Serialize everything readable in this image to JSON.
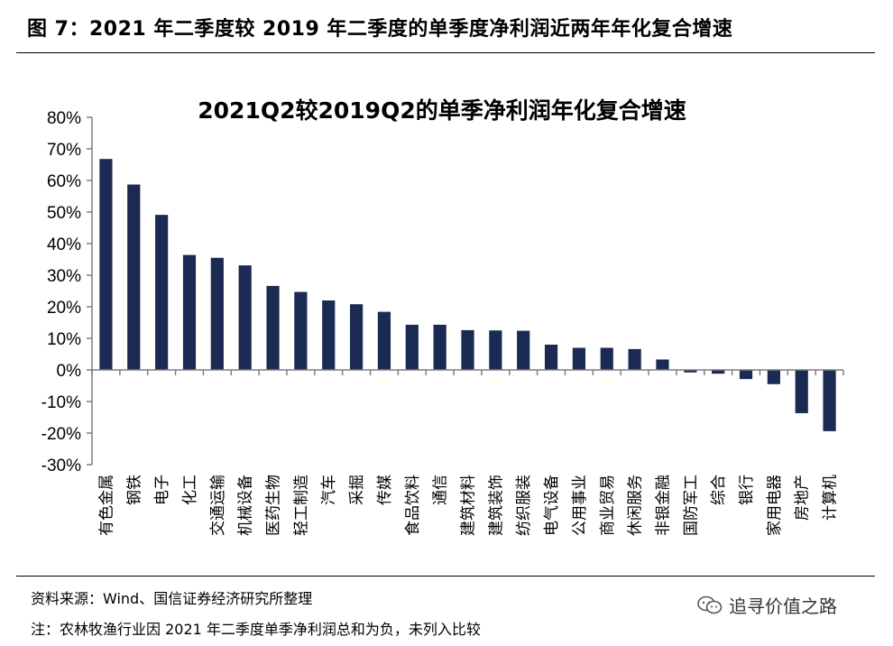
{
  "figure": {
    "title": "图 7：2021 年二季度较 2019 年二季度的单季度净利润近两年年化复合增速",
    "source": "资料来源：Wind、国信证券经济研究所整理",
    "note": "注：农林牧渔行业因 2021 年二季度单季净利润总和为负，未列入比较",
    "watermark": "追寻价值之路",
    "watermark_icon": "wechat-icon"
  },
  "colors": {
    "bar": "#1a2a52",
    "axis": "#7f7f7f",
    "rule": "#000000"
  },
  "chart_data": {
    "type": "bar",
    "title": "2021Q2较2019Q2的单季净利润年化复合增速",
    "xlabel": "",
    "ylabel": "",
    "ylim": [
      -30,
      80
    ],
    "yticks": [
      80,
      70,
      60,
      50,
      40,
      30,
      20,
      10,
      0,
      -10,
      -20,
      -30
    ],
    "yticks_labels": [
      "80%",
      "70%",
      "60%",
      "50%",
      "40%",
      "30%",
      "20%",
      "10%",
      "0%",
      "-10%",
      "-20%",
      "-30%"
    ],
    "grid": false,
    "legend": "none",
    "categories": [
      "有色金属",
      "钢铁",
      "电子",
      "化工",
      "交通运输",
      "机械设备",
      "医药生物",
      "轻工制造",
      "汽车",
      "采掘",
      "传媒",
      "食品饮料",
      "通信",
      "建筑材料",
      "建筑装饰",
      "纺织服装",
      "电气设备",
      "公用事业",
      "商业贸易",
      "休闲服务",
      "非银金融",
      "国防军工",
      "综合",
      "银行",
      "家用电器",
      "房地产",
      "计算机"
    ],
    "values": [
      66.8,
      58.7,
      49.1,
      36.4,
      35.5,
      33.1,
      26.6,
      24.7,
      22.0,
      20.8,
      18.4,
      14.3,
      14.3,
      12.6,
      12.5,
      12.4,
      8.0,
      7.0,
      7.0,
      6.6,
      3.3,
      -0.8,
      -1.2,
      -2.9,
      -4.5,
      -13.7,
      -19.4
    ]
  }
}
